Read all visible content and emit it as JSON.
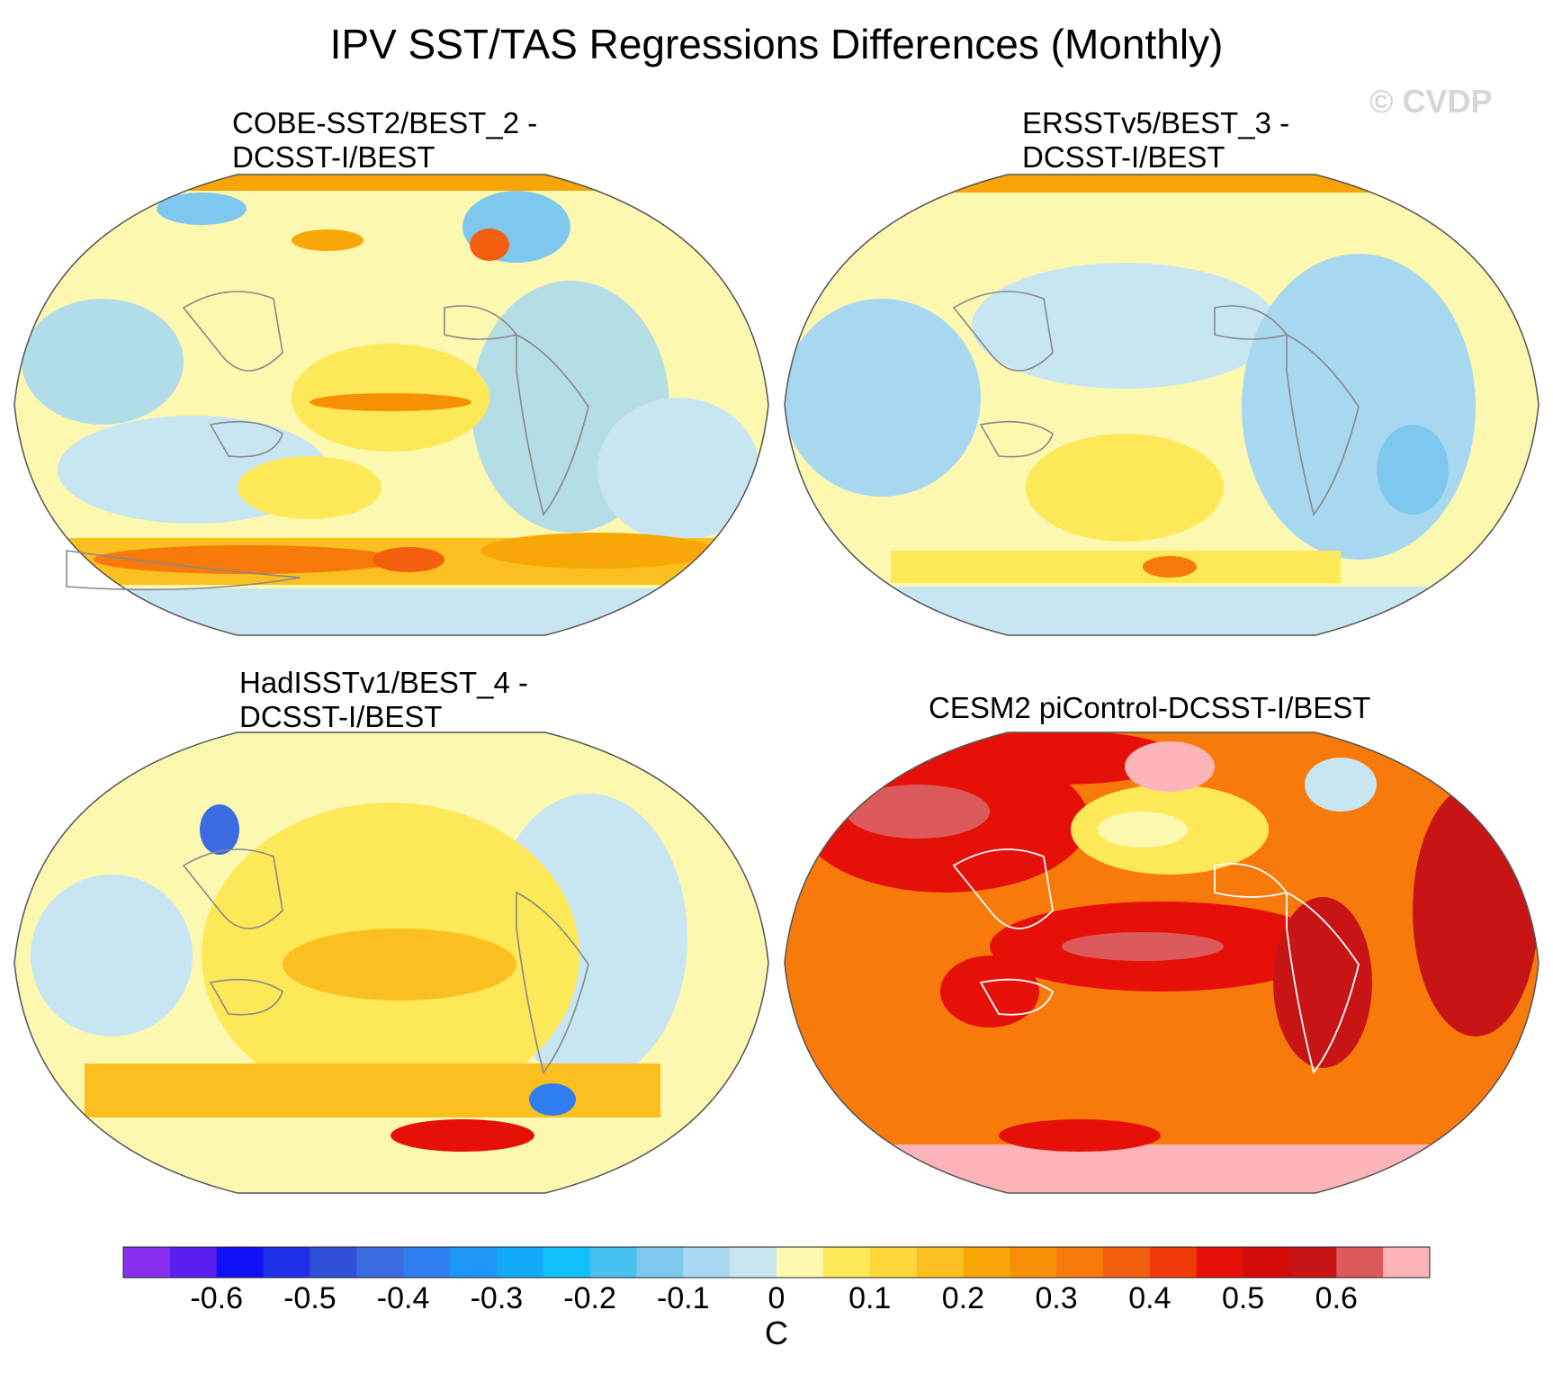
{
  "main_title": "IPV SST/TAS Regressions Differences (Monthly)",
  "watermark": "© CVDP",
  "panels": [
    {
      "title_line1": "COBE-SST2/BEST_2 -",
      "title_line2": "DCSST-I/BEST",
      "dominant_sign": "mixed, mostly weak positive",
      "max_color": "#f46d0a"
    },
    {
      "title_line1": "ERSSTv5/BEST_3 -",
      "title_line2": "DCSST-I/BEST",
      "dominant_sign": "mixed, weak",
      "max_color": "#f8a306"
    },
    {
      "title_line1": "HadISSTv1/BEST_4 -",
      "title_line2": "DCSST-I/BEST",
      "dominant_sign": "weak positive",
      "max_color": "#e6260c"
    },
    {
      "title_line1": "CESM2 piControl-DCSST-I/BEST",
      "title_line2": "",
      "dominant_sign": "strong positive",
      "max_color": "#ffb6b8"
    }
  ],
  "chart_data": {
    "type": "heatmap",
    "title": "IPV SST/TAS Regressions Differences (Monthly)",
    "projection": "Robinson global map",
    "colorbar": {
      "units": "C",
      "tick_labels": [
        "-0.6",
        "-0.5",
        "-0.4",
        "-0.3",
        "-0.2",
        "-0.1",
        "0",
        "0.1",
        "0.2",
        "0.3",
        "0.4",
        "0.5",
        "0.6"
      ],
      "tick_values": [
        -0.6,
        -0.5,
        -0.4,
        -0.3,
        -0.2,
        -0.1,
        0,
        0.1,
        0.2,
        0.3,
        0.4,
        0.5,
        0.6
      ],
      "levels": [
        -0.65,
        -0.6,
        -0.55,
        -0.5,
        -0.45,
        -0.4,
        -0.35,
        -0.3,
        -0.25,
        -0.2,
        -0.15,
        -0.1,
        -0.05,
        0,
        0.05,
        0.1,
        0.15,
        0.2,
        0.25,
        0.3,
        0.35,
        0.4,
        0.45,
        0.5,
        0.55,
        0.6,
        0.65
      ],
      "colors": [
        "#8a2ef0",
        "#5a1ef0",
        "#1010f8",
        "#1e30e8",
        "#3050d8",
        "#3c6ae0",
        "#2e7ef0",
        "#1e96f8",
        "#12aaf8",
        "#10c0f8",
        "#48c0f0",
        "#7ec8ee",
        "#a8d8f0",
        "#c8e6f2",
        "#fdf8b0",
        "#fde858",
        "#fdd838",
        "#fbc020",
        "#f8a806",
        "#f89006",
        "#f87a0a",
        "#f45e10",
        "#f03a0a",
        "#e61008",
        "#d40a0a",
        "#c81414",
        "#dc5a5c",
        "#fcb4b8"
      ]
    },
    "panels": [
      "COBE-SST2/BEST_2 - DCSST-I/BEST",
      "ERSSTv5/BEST_3 - DCSST-I/BEST",
      "HadISSTv1/BEST_4 - DCSST-I/BEST",
      "CESM2 piControl-DCSST-I/BEST"
    ]
  }
}
